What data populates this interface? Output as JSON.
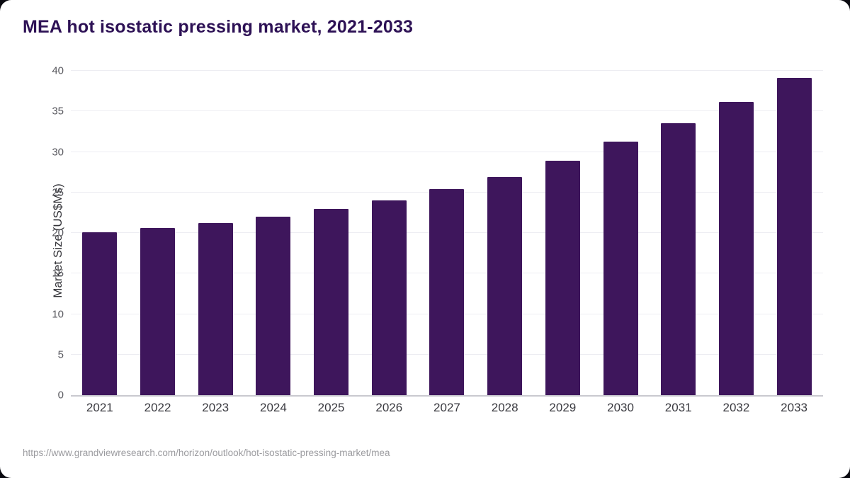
{
  "chart_data": {
    "type": "bar",
    "title": "MEA hot isostatic pressing market, 2021-2033",
    "xlabel": "",
    "ylabel": "Market Size (US$Ms)",
    "categories": [
      "2021",
      "2022",
      "2023",
      "2024",
      "2025",
      "2026",
      "2027",
      "2028",
      "2029",
      "2030",
      "2031",
      "2032",
      "2033"
    ],
    "values": [
      20.1,
      20.6,
      21.2,
      22.0,
      23.0,
      24.0,
      25.4,
      26.9,
      28.9,
      31.3,
      33.5,
      36.2,
      39.1
    ],
    "ylim": [
      0,
      40
    ],
    "yticks": [
      0,
      5,
      10,
      15,
      20,
      25,
      30,
      35,
      40
    ],
    "grid": "horizontal",
    "legend": "none",
    "bar_color": "#3e165c"
  },
  "footer": {
    "source_url": "https://www.grandviewresearch.com/horizon/outlook/hot-isostatic-pressing-market/mea"
  },
  "colors": {
    "title": "#2d1155",
    "card_background": "#ffffff",
    "frame_background": "#0a0a10",
    "gridline": "#ededf2",
    "axis_line": "#c9c9cf"
  }
}
